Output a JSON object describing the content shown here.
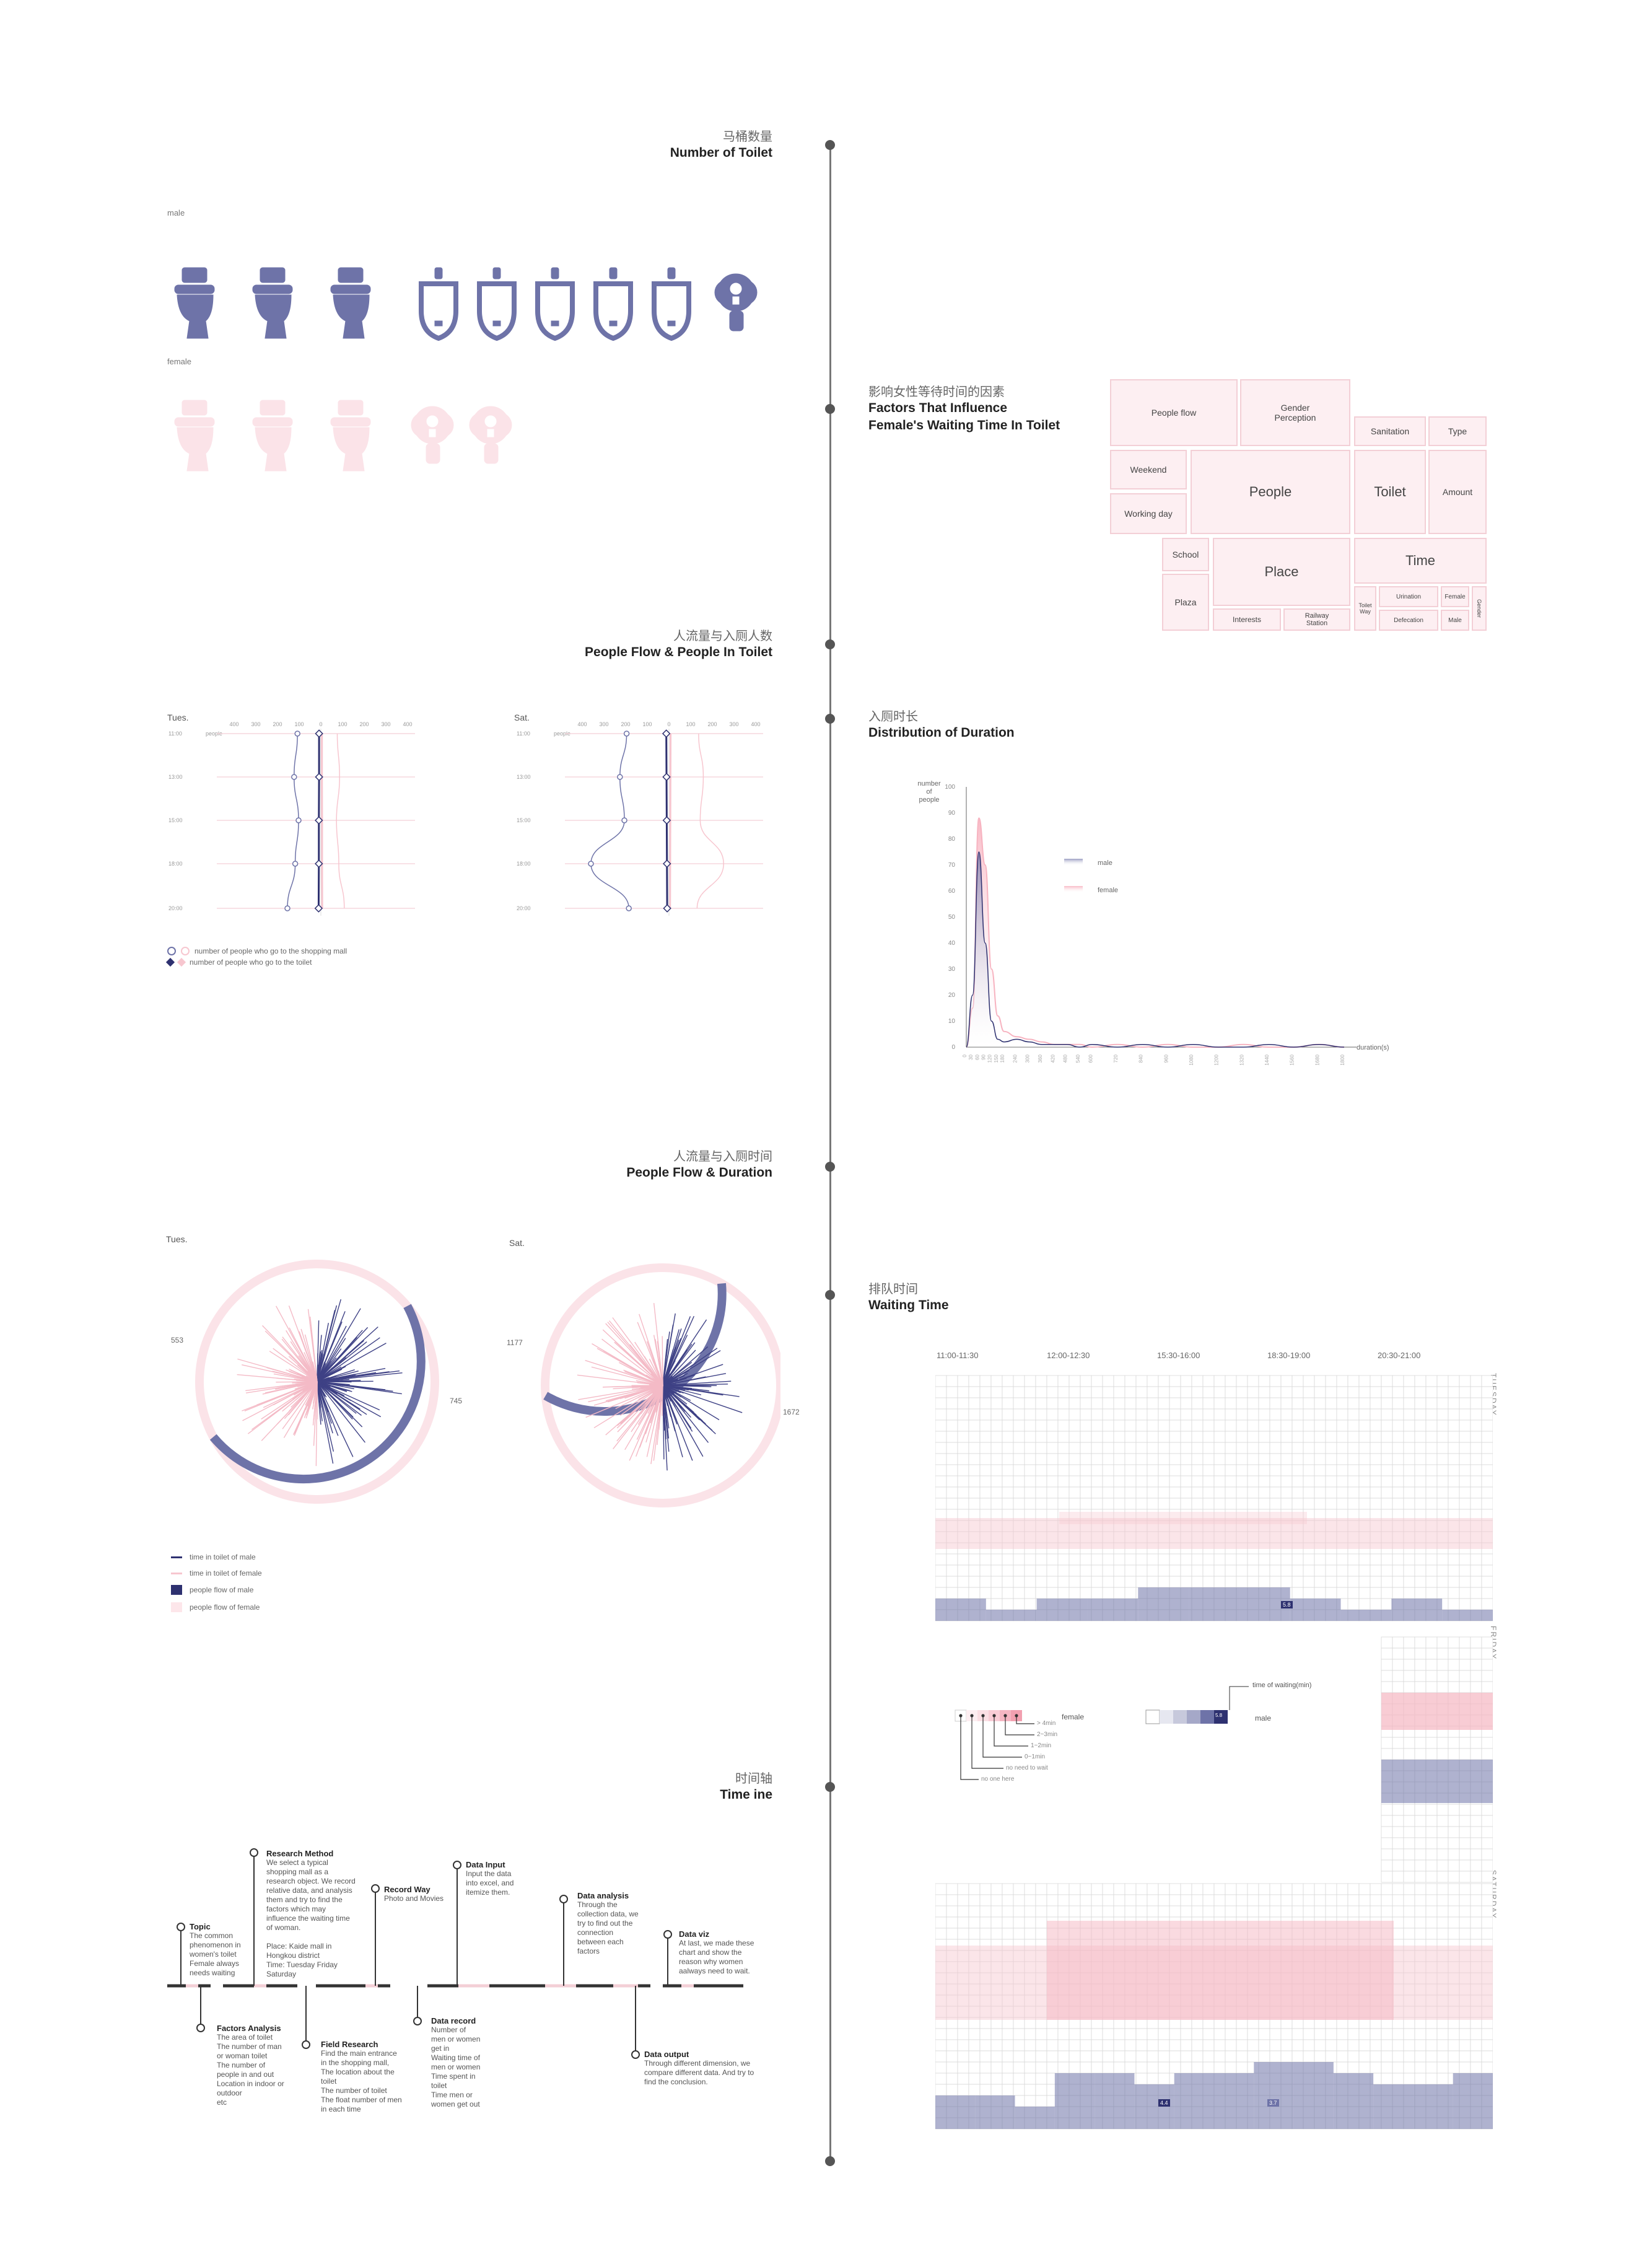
{
  "sections": {
    "toilets": {
      "cn": "马桶数量",
      "en": "Number of  Toilet",
      "male_label": "male",
      "female_label": "female"
    },
    "factors": {
      "cn": "影响女性等待时间的因素",
      "en1": "Factors That Influence",
      "en2": "Female's Waiting Time In Toilet"
    },
    "flow": {
      "cn": "人流量与入厕人数",
      "en": "People Flow & People In Toilet"
    },
    "duration": {
      "cn": "入厕时长",
      "en": "Distribution of Duration"
    },
    "flowdur": {
      "cn": "人流量与入厕时间",
      "en": "People Flow & Duration"
    },
    "waiting": {
      "cn": "排队时间",
      "en": "Waiting Time"
    },
    "timeline": {
      "cn": "时间轴",
      "en": "Time ine"
    }
  },
  "toilet_icons": {
    "male": [
      "toilet-icon",
      "toilet-icon",
      "toilet-icon",
      "urinal-icon",
      "urinal-icon",
      "urinal-icon",
      "urinal-icon",
      "urinal-icon",
      "squat-toilet-icon"
    ],
    "female": [
      "toilet-icon",
      "toilet-icon",
      "toilet-icon",
      "squat-toilet-icon",
      "squat-toilet-icon"
    ],
    "colors": {
      "male": "#6e73a8",
      "female": "#f9dde2"
    }
  },
  "treemap": {
    "people_flow": "People flow",
    "gender_perception": "Gender\nPerception",
    "sanitation": "Sanitation",
    "type": "Type",
    "weekend": "Weekend",
    "people": "People",
    "toilet": "Toilet",
    "amount": "Amount",
    "working_day": "Working day",
    "school": "School",
    "place": "Place",
    "time": "Time",
    "plaza": "Plaza",
    "interests": "Interests",
    "railway": "Railway\nStation",
    "toilet_way": "Toilet\nWay",
    "urination": "Urination",
    "female": "Female",
    "defecation": "Defecation",
    "male": "Male",
    "gender": "Gender"
  },
  "flow_chart": {
    "tue_label": "Tues.",
    "sat_label": "Sat.",
    "people_label": "people",
    "ticks": [
      "400",
      "300",
      "200",
      "100",
      "0",
      "100",
      "200",
      "300",
      "400"
    ],
    "times": [
      "11:00",
      "13:00",
      "15:00",
      "18:00",
      "20:00"
    ],
    "legend": [
      "number of people who go to the shopping mall",
      "number of people who go to the toilet"
    ]
  },
  "chart_data": [
    {
      "type": "line",
      "title": "People Flow & People In Toilet",
      "panels": [
        "Tues.",
        "Sat."
      ],
      "times": [
        "11:00",
        "13:00",
        "15:00",
        "18:00",
        "20:00"
      ],
      "series": [
        {
          "name": "number of people who go to the shopping mall",
          "tue": [
            -105,
            -120,
            -100,
            -115,
            -150
          ],
          "sat": [
            -190,
            -220,
            -200,
            -350,
            -180
          ]
        },
        {
          "name": "number of people who go to the toilet",
          "tue": [
            -8,
            -8,
            -9,
            -9,
            -10
          ],
          "sat": [
            -12,
            -11,
            -10,
            -9,
            -8
          ]
        }
      ]
    },
    {
      "type": "line",
      "title": "Distribution of Duration",
      "ylabel": "number of people",
      "xlabel": "duration(s)",
      "ylim": [
        0,
        100
      ],
      "yticks": [
        0,
        10,
        20,
        30,
        40,
        50,
        60,
        70,
        80,
        90,
        100
      ],
      "x": [
        0,
        30,
        60,
        90,
        120,
        150,
        180,
        240,
        300,
        360,
        420,
        480,
        540,
        600,
        720,
        840,
        960,
        1080,
        1200,
        1320,
        1440,
        1560,
        1680,
        1800
      ],
      "series": [
        {
          "name": "male",
          "values": [
            0,
            20,
            75,
            40,
            10,
            3,
            2,
            3,
            2,
            1,
            1,
            1,
            0,
            1,
            0,
            1,
            0,
            1,
            0,
            0,
            1,
            0,
            1,
            0
          ]
        },
        {
          "name": "female",
          "values": [
            0,
            15,
            88,
            70,
            30,
            12,
            6,
            4,
            3,
            2,
            1,
            1,
            1,
            0,
            1,
            0,
            1,
            0,
            0,
            1,
            0,
            0,
            1,
            0
          ]
        }
      ]
    },
    {
      "type": "heatmap",
      "title": "Waiting Time",
      "time_slots": [
        "11:00-11:30",
        "12:00-12:30",
        "15:30-16:00",
        "18:30-19:00",
        "20:30-21:00"
      ],
      "days": [
        "TUESDAY",
        "FRIDAY",
        "SATURDAY"
      ],
      "labels": {
        "tue_male_peak": "5.8",
        "sat_male_1": "4.4",
        "sat_male_2": "3.7"
      }
    }
  ],
  "duration_chart": {
    "ylabel1": "number",
    "ylabel2": "of",
    "ylabel3": "people",
    "xlabel": "duration(s)",
    "legend_male": "male",
    "legend_female": "female"
  },
  "radial": {
    "tue": {
      "label": "Tues.",
      "female_count": "553",
      "male_count": "745"
    },
    "sat": {
      "label": "Sat.",
      "female_count": "1177",
      "male_count": "1672"
    },
    "legend": [
      "time in toilet of male",
      "time in toilet of female",
      "people flow of male",
      "people flow of female"
    ]
  },
  "heatmap": {
    "slots": [
      "11:00-11:30",
      "12:00-12:30",
      "15:30-16:00",
      "18:30-19:00",
      "20:30-21:00"
    ],
    "tuesday": "TUESDAY",
    "friday": "FRIDAY",
    "saturday": "SATURDAY",
    "legend_female": "female",
    "legend_male": "male",
    "legend_time": "time of waiting(min)",
    "legend_peak": "5.8",
    "legend_items": [
      "> 4min",
      "2~3min",
      "1~2min",
      "0~1min",
      "no need to wait",
      "no one here"
    ]
  },
  "timeline": [
    {
      "title": "Topic",
      "text": "The common\nphenomenon in\nwomen's toilet\nFemale always\nneeds waiting"
    },
    {
      "title": "Factors Analysis",
      "text": "The area of toilet\nThe number of man\nor woman toilet\nThe number of\npeople in and out\nLocation in indoor or\noutdoor\netc"
    },
    {
      "title": "Research Method",
      "text": "We select a typical\nshopping mall as a\nresearch object. We record\nrelative data, and analysis\nthem and try to find the\nfactors which may\ninfluence the waiting time\nof woman.\n\nPlace: Kaide mall in\nHongkou district\nTime: Tuesday Friday\nSaturday"
    },
    {
      "title": "Field Research",
      "text": "Find the main entrance\nin the shopping mall,\nThe location about the\ntoilet\nThe number of toilet\nThe float number of men\nin each time"
    },
    {
      "title": "Record Way",
      "text": "Photo and Movies"
    },
    {
      "title": "Data record",
      "text": "Number of\nmen or women\nget in\nWaiting time of\nmen or women\nTime spent in\ntoilet\nTime men or\nwomen get out"
    },
    {
      "title": "Data Input",
      "text": "Input the data\ninto excel,  and\nitemize them."
    },
    {
      "title": "Data analysis",
      "text": "Through the\ncollection data, we\ntry to find out the\nconnection\nbetween each\nfactors"
    },
    {
      "title": "Data output",
      "text": "Through different dimension, we\ncompare different data. And try to\nfind the conclusion."
    },
    {
      "title": "Data viz",
      "text": "At last, we made these\nchart and show the\nreason why women\naalways need to wait."
    }
  ],
  "colors": {
    "male": "#6e73a8",
    "male_dark": "#2e3170",
    "female": "#f7c6cf",
    "female_light": "#fde6ea",
    "axis": "#666666"
  }
}
